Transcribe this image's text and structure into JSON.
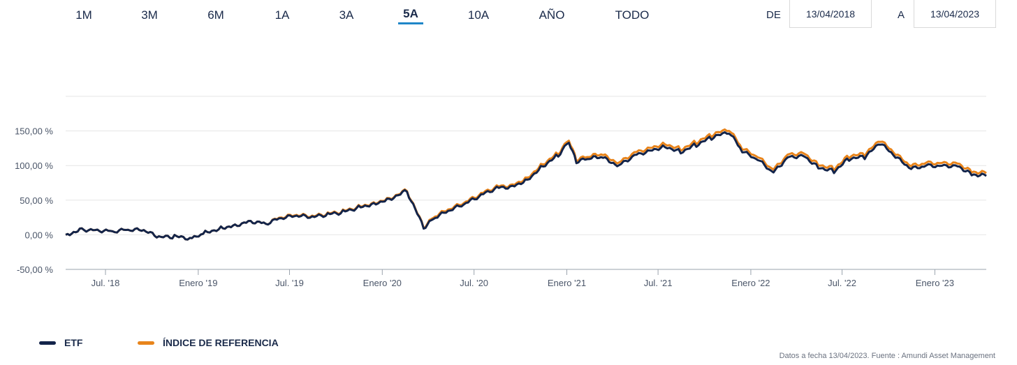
{
  "range_tabs": [
    {
      "label": "1M",
      "active": false
    },
    {
      "label": "3M",
      "active": false
    },
    {
      "label": "6M",
      "active": false
    },
    {
      "label": "1A",
      "active": false
    },
    {
      "label": "3A",
      "active": false
    },
    {
      "label": "5A",
      "active": true
    },
    {
      "label": "10A",
      "active": false
    },
    {
      "label": "AÑO",
      "active": false
    },
    {
      "label": "TODO",
      "active": false
    }
  ],
  "date_range": {
    "from_label": "DE",
    "from_value": "13/04/2018",
    "to_label": "A",
    "to_value": "13/04/2023"
  },
  "colors": {
    "etf": "#13244a",
    "benchmark": "#e8841b",
    "active_tab": "#1f86c8",
    "grid": "#e6e6e6"
  },
  "legend": {
    "etf_label": "ETF",
    "benchmark_label": "ÍNDICE DE REFERENCIA"
  },
  "source_note": "Datos a fecha 13/04/2023. Fuente : Amundi Asset Management",
  "chart_data": {
    "type": "line",
    "title": "",
    "xlabel": "",
    "ylabel": "",
    "x_range": [
      "2018-04-13",
      "2023-04-13"
    ],
    "ylim": [
      -50,
      200
    ],
    "y_ticks": [
      {
        "value": -50,
        "label": "-50,00 %"
      },
      {
        "value": 0,
        "label": "0,00 %"
      },
      {
        "value": 50,
        "label": "50,00 %"
      },
      {
        "value": 100,
        "label": "100,00 %"
      },
      {
        "value": 150,
        "label": "150,00 %"
      }
    ],
    "x_ticks": [
      {
        "date": "2018-07-01",
        "label": "Jul. '18"
      },
      {
        "date": "2019-01-01",
        "label": "Enero '19"
      },
      {
        "date": "2019-07-01",
        "label": "Jul. '19"
      },
      {
        "date": "2020-01-01",
        "label": "Enero '20"
      },
      {
        "date": "2020-07-01",
        "label": "Jul. '20"
      },
      {
        "date": "2021-01-01",
        "label": "Enero '21"
      },
      {
        "date": "2021-07-01",
        "label": "Jul. '21"
      },
      {
        "date": "2022-01-01",
        "label": "Enero '22"
      },
      {
        "date": "2022-07-01",
        "label": "Jul. '22"
      },
      {
        "date": "2023-01-01",
        "label": "Enero '23"
      }
    ],
    "grid": true,
    "series": [
      {
        "name": "ETF",
        "x": [
          "2018-04-13",
          "2018-05-15",
          "2018-06-15",
          "2018-07-15",
          "2018-08-15",
          "2018-09-15",
          "2018-10-15",
          "2018-11-15",
          "2018-12-24",
          "2019-01-15",
          "2019-02-15",
          "2019-03-15",
          "2019-04-15",
          "2019-05-15",
          "2019-06-15",
          "2019-07-15",
          "2019-08-15",
          "2019-09-15",
          "2019-10-15",
          "2019-11-15",
          "2019-12-15",
          "2020-01-15",
          "2020-02-19",
          "2020-03-23",
          "2020-04-15",
          "2020-05-15",
          "2020-06-15",
          "2020-07-15",
          "2020-08-15",
          "2020-09-15",
          "2020-10-15",
          "2020-11-15",
          "2020-12-15",
          "2021-01-05",
          "2021-01-20",
          "2021-02-15",
          "2021-03-10",
          "2021-04-15",
          "2021-05-15",
          "2021-06-15",
          "2021-07-15",
          "2021-08-15",
          "2021-09-15",
          "2021-10-15",
          "2021-11-19",
          "2021-12-15",
          "2022-01-15",
          "2022-02-15",
          "2022-03-15",
          "2022-04-15",
          "2022-05-15",
          "2022-06-15",
          "2022-07-15",
          "2022-08-15",
          "2022-09-15",
          "2022-10-15",
          "2022-11-15",
          "2022-12-15",
          "2023-01-15",
          "2023-02-15",
          "2023-03-15",
          "2023-04-13"
        ],
        "values": [
          0,
          8,
          7,
          5,
          7,
          6,
          -4,
          -3,
          -5,
          3,
          10,
          14,
          20,
          16,
          24,
          27,
          25,
          29,
          33,
          40,
          45,
          52,
          63,
          10,
          25,
          35,
          45,
          57,
          68,
          70,
          80,
          100,
          115,
          135,
          105,
          110,
          112,
          100,
          115,
          122,
          128,
          120,
          130,
          140,
          148,
          120,
          108,
          90,
          112,
          115,
          98,
          92,
          110,
          112,
          132,
          112,
          95,
          100,
          100,
          100,
          88,
          85
        ]
      },
      {
        "name": "ÍNDICE DE REFERENCIA",
        "x": [
          "2018-04-13",
          "2018-05-15",
          "2018-06-15",
          "2018-07-15",
          "2018-08-15",
          "2018-09-15",
          "2018-10-15",
          "2018-11-15",
          "2018-12-24",
          "2019-01-15",
          "2019-02-15",
          "2019-03-15",
          "2019-04-15",
          "2019-05-15",
          "2019-06-15",
          "2019-07-15",
          "2019-08-15",
          "2019-09-15",
          "2019-10-15",
          "2019-11-15",
          "2019-12-15",
          "2020-01-15",
          "2020-02-19",
          "2020-03-23",
          "2020-04-15",
          "2020-05-15",
          "2020-06-15",
          "2020-07-15",
          "2020-08-15",
          "2020-09-15",
          "2020-10-15",
          "2020-11-15",
          "2020-12-15",
          "2021-01-05",
          "2021-01-20",
          "2021-02-15",
          "2021-03-10",
          "2021-04-15",
          "2021-05-15",
          "2021-06-15",
          "2021-07-15",
          "2021-08-15",
          "2021-09-15",
          "2021-10-15",
          "2021-11-19",
          "2021-12-15",
          "2022-01-15",
          "2022-02-15",
          "2022-03-15",
          "2022-04-15",
          "2022-05-15",
          "2022-06-15",
          "2022-07-15",
          "2022-08-15",
          "2022-09-15",
          "2022-10-15",
          "2022-11-15",
          "2022-12-15",
          "2023-01-15",
          "2023-02-15",
          "2023-03-15",
          "2023-04-13"
        ],
        "values": [
          0,
          8,
          7,
          5,
          7,
          6,
          -4,
          -3,
          -5,
          3,
          10,
          14,
          20,
          16,
          25,
          28,
          26,
          30,
          34,
          41,
          46,
          53,
          64,
          11,
          27,
          37,
          47,
          59,
          70,
          72,
          83,
          103,
          118,
          138,
          108,
          113,
          116,
          104,
          119,
          126,
          132,
          124,
          134,
          144,
          152,
          124,
          112,
          94,
          116,
          119,
          102,
          96,
          114,
          116,
          136,
          116,
          99,
          104,
          104,
          104,
          92,
          89
        ]
      }
    ]
  }
}
